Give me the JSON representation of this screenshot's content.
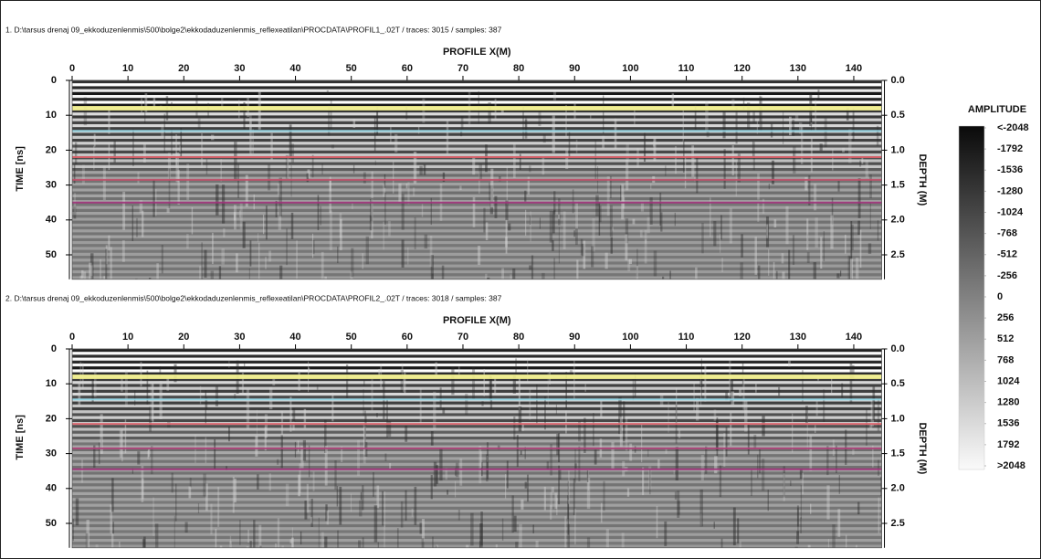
{
  "chart_data": [
    {
      "type": "radargram",
      "title": "1. D:\\tarsus drenaj 09_ekkoduzenlenmis\\500\\bolge2\\ekkodaduzenlenmis_reflexeatilan\\PROCDATA\\PROFIL1_.02T / traces: 3015 / samples: 387",
      "xlabel": "PROFILE X(M)",
      "ylabel": "TIME [ns]",
      "y2label": "DEPTH (M)",
      "xlim": [
        0,
        145
      ],
      "xticks": [
        0,
        10,
        20,
        30,
        40,
        50,
        60,
        70,
        80,
        90,
        100,
        110,
        120,
        130,
        140
      ],
      "ylim": [
        0,
        57
      ],
      "yticks": [
        0,
        10,
        20,
        30,
        40,
        50
      ],
      "y2lim": [
        0,
        2.85
      ],
      "y2ticks": [
        {
          "value": 0,
          "label": "0.0"
        },
        0.5,
        {
          "value": 1,
          "label": "1.0"
        },
        1.5,
        {
          "value": 2,
          "label": "2.0"
        },
        2.5
      ],
      "horizons": [
        {
          "color": "#f2f08c",
          "values": [
            8
          ]
        },
        {
          "color": "#8fd6e6",
          "values": [
            14.5
          ]
        },
        {
          "color": "#e0606a",
          "values": [
            22
          ]
        },
        {
          "color": "#c0506a",
          "values": [
            28.5
          ]
        },
        {
          "color": "#a0307a",
          "values": [
            35
          ]
        }
      ]
    },
    {
      "type": "radargram",
      "title": "2. D:\\tarsus drenaj 09_ekkoduzenlenmis\\500\\bolge2\\ekkodaduzenlenmis_reflexeatilan\\PROCDATA\\PROFIL2_.02T / traces: 3018 / samples: 387",
      "xlabel": "PROFILE X(M)",
      "ylabel": "TIME [ns]",
      "y2label": "DEPTH (M)",
      "xlim": [
        0,
        145
      ],
      "xticks": [
        0,
        10,
        20,
        30,
        40,
        50,
        60,
        70,
        80,
        90,
        100,
        110,
        120,
        130,
        140
      ],
      "ylim": [
        0,
        57
      ],
      "yticks": [
        0,
        10,
        20,
        30,
        40,
        50
      ],
      "y2lim": [
        0,
        2.85
      ],
      "y2ticks": [
        {
          "value": 0,
          "label": "0.0"
        },
        0.5,
        {
          "value": 1,
          "label": "1.0"
        },
        1.5,
        {
          "value": 2,
          "label": "2.0"
        },
        2.5
      ],
      "horizons": [
        {
          "color": "#f2f08c",
          "values": [
            8
          ]
        },
        {
          "color": "#8fd6e6",
          "values": [
            14.5
          ]
        },
        {
          "color": "#e0606a",
          "values": [
            21.5
          ]
        },
        {
          "color": "#b0407a",
          "values": [
            28.5
          ]
        },
        {
          "color": "#a0307a",
          "values": [
            34.5
          ]
        }
      ]
    }
  ],
  "colorbar": {
    "title": "AMPLITUDE",
    "lim": [
      -2048,
      2048
    ],
    "ticks": [
      {
        "value": -2048,
        "label": "<-2048"
      },
      -1792,
      -1536,
      -1280,
      -1024,
      -768,
      -512,
      -256,
      0,
      256,
      512,
      768,
      1024,
      1280,
      1536,
      1792,
      {
        "value": 2048,
        "label": ">2048"
      }
    ]
  }
}
